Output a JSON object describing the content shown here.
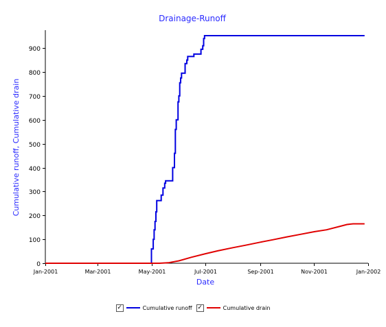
{
  "chart_data": {
    "type": "line",
    "title": "Drainage-Runoff",
    "xlabel": "Date",
    "ylabel": "Cumulative runoff, Cumulative drain",
    "x_ticks": [
      "Jan-2001",
      "Mar-2001",
      "May-2001",
      "Jul-2001",
      "Sep-2001",
      "Nov-2001",
      "Jan-2002"
    ],
    "y_ticks": [
      0,
      100,
      200,
      300,
      400,
      500,
      600,
      700,
      800,
      900
    ],
    "xlim": [
      "2001-01-01",
      "2002-01-01"
    ],
    "ylim": [
      0,
      975
    ],
    "colors": {
      "title": "#2a2aff",
      "runoff": "#0000e0",
      "drain": "#e00000"
    },
    "series": [
      {
        "name": "Cumulative runoff",
        "step": true,
        "points": [
          [
            "2001-01-01",
            0
          ],
          [
            "2001-04-30",
            0
          ],
          [
            "2001-05-01",
            60
          ],
          [
            "2001-05-03",
            100
          ],
          [
            "2001-05-04",
            140
          ],
          [
            "2001-05-05",
            175
          ],
          [
            "2001-05-06",
            215
          ],
          [
            "2001-05-07",
            262
          ],
          [
            "2001-05-12",
            285
          ],
          [
            "2001-05-14",
            315
          ],
          [
            "2001-05-16",
            335
          ],
          [
            "2001-05-17",
            345
          ],
          [
            "2001-05-25",
            400
          ],
          [
            "2001-05-27",
            460
          ],
          [
            "2001-05-28",
            560
          ],
          [
            "2001-05-29",
            600
          ],
          [
            "2001-05-31",
            675
          ],
          [
            "2001-06-01",
            700
          ],
          [
            "2001-06-02",
            755
          ],
          [
            "2001-06-03",
            775
          ],
          [
            "2001-06-04",
            795
          ],
          [
            "2001-06-08",
            835
          ],
          [
            "2001-06-10",
            850
          ],
          [
            "2001-06-11",
            865
          ],
          [
            "2001-06-18",
            875
          ],
          [
            "2001-06-26",
            895
          ],
          [
            "2001-06-28",
            910
          ],
          [
            "2001-06-29",
            940
          ],
          [
            "2001-06-30",
            952
          ],
          [
            "2001-12-28",
            952
          ]
        ]
      },
      {
        "name": "Cumulative drain",
        "step": false,
        "points": [
          [
            "2001-01-01",
            0
          ],
          [
            "2001-05-10",
            0
          ],
          [
            "2001-05-20",
            2
          ],
          [
            "2001-06-01",
            10
          ],
          [
            "2001-06-15",
            25
          ],
          [
            "2001-07-01",
            40
          ],
          [
            "2001-07-15",
            52
          ],
          [
            "2001-08-01",
            65
          ],
          [
            "2001-08-15",
            75
          ],
          [
            "2001-09-01",
            88
          ],
          [
            "2001-09-15",
            98
          ],
          [
            "2001-10-01",
            110
          ],
          [
            "2001-10-15",
            120
          ],
          [
            "2001-11-01",
            132
          ],
          [
            "2001-11-15",
            140
          ],
          [
            "2001-12-01",
            155
          ],
          [
            "2001-12-08",
            162
          ],
          [
            "2001-12-15",
            165
          ],
          [
            "2001-12-28",
            165
          ]
        ]
      }
    ]
  },
  "legend": {
    "items": [
      {
        "label": "Cumulative runoff",
        "checked": "✓",
        "color": "#0000e0"
      },
      {
        "label": "Cumulative drain",
        "checked": "✓",
        "color": "#e00000"
      }
    ]
  }
}
